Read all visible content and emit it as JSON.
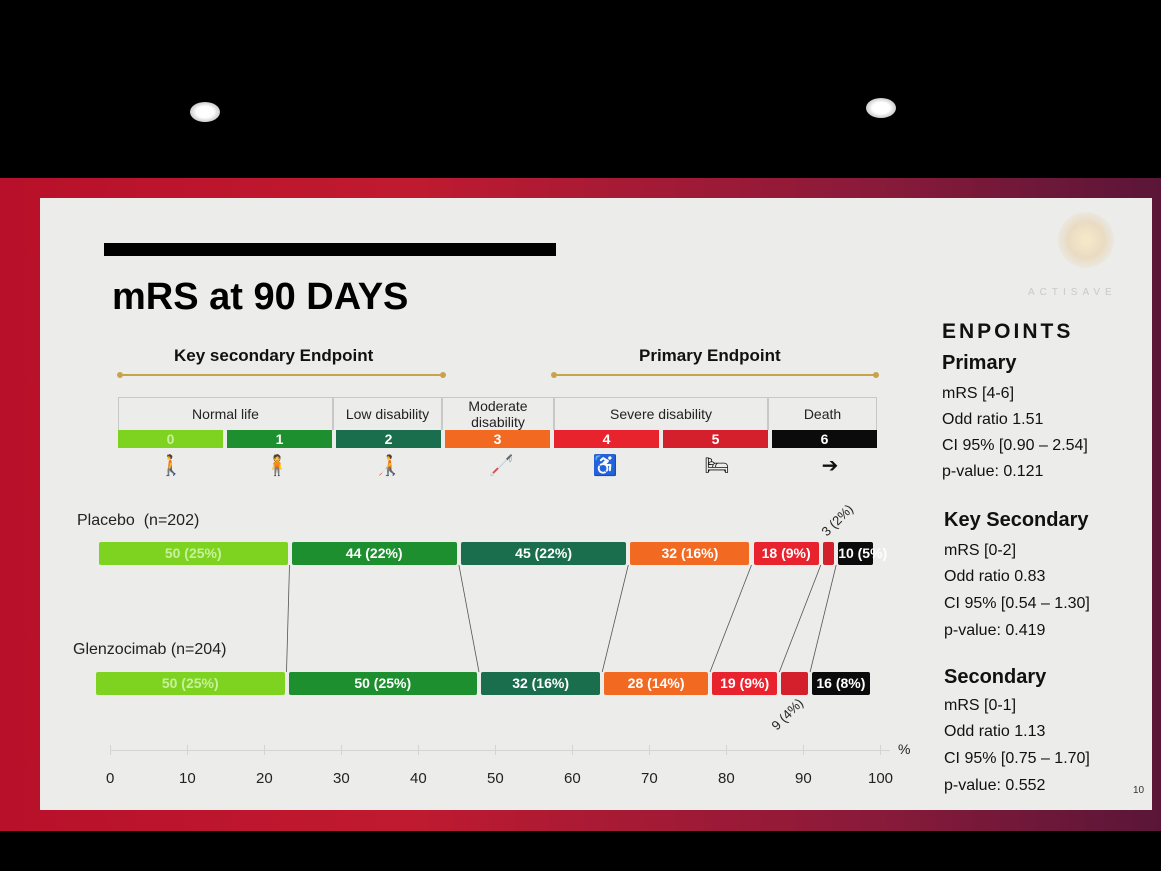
{
  "slide": {
    "title": "mRS at 90 DAYS",
    "logo_text": "ACTISAVE",
    "page_number": "10"
  },
  "endpoints_header": {
    "key_secondary": "Key secondary Endpoint",
    "primary": "Primary Endpoint"
  },
  "categories": [
    {
      "label": "Normal life"
    },
    {
      "label": "Low disability"
    },
    {
      "label": "Moderate disability"
    },
    {
      "label": "Severe disability"
    },
    {
      "label": "Death"
    }
  ],
  "scores": [
    {
      "label": "0",
      "color": "#7ed321"
    },
    {
      "label": "1",
      "color": "#1e8f2e"
    },
    {
      "label": "2",
      "color": "#1a6e4e"
    },
    {
      "label": "3",
      "color": "#f26a22"
    },
    {
      "label": "4",
      "color": "#e8232e"
    },
    {
      "label": "5",
      "color": "#d41f2d"
    },
    {
      "label": "6",
      "color": "#0b0b0b"
    }
  ],
  "icons": [
    "walking-person-icon",
    "standing-person-icon",
    "walker-person-icon",
    "cane-person-icon",
    "wheelchair-icon",
    "bed-icon",
    "lying-person-icon"
  ],
  "chart_data": {
    "type": "bar",
    "orientation": "horizontal-stacked",
    "categories": [
      "0",
      "1",
      "2",
      "3",
      "4",
      "5",
      "6"
    ],
    "series": [
      {
        "name": "Placebo  (n=202)",
        "values": [
          25,
          22,
          22,
          16,
          9,
          2,
          5
        ],
        "labels": [
          "50 (25%)",
          "44 (22%)",
          "45 (22%)",
          "32 (16%)",
          "18 (9%)",
          "3 (2%)",
          "10 (5%)"
        ]
      },
      {
        "name": "Glenzocimab (n=204)",
        "values": [
          25,
          25,
          16,
          14,
          9,
          4,
          8
        ],
        "labels": [
          "50 (25%)",
          "50 (25%)",
          "32 (16%)",
          "28 (14%)",
          "19 (9%)",
          "9 (4%)",
          "16 (8%)"
        ]
      }
    ],
    "colors": [
      "#7ed321",
      "#1e8f2e",
      "#1a6e4e",
      "#f26a22",
      "#e8232e",
      "#d41f2d",
      "#0b0b0b"
    ],
    "xlim": [
      0,
      100
    ],
    "xticks": [
      "0",
      "10",
      "20",
      "30",
      "40",
      "50",
      "60",
      "70",
      "80",
      "90",
      "100"
    ],
    "xunit": "%"
  },
  "sidebar": {
    "heading": "ENPOINTS",
    "primary": {
      "title": "Primary",
      "lines": [
        "mRS [4-6]",
        "Odd ratio 1.51",
        "CI 95% [0.90 – 2.54]",
        "p-value: 0.121"
      ]
    },
    "key_secondary": {
      "title": "Key Secondary",
      "lines": [
        "mRS [0-2]",
        "Odd ratio 0.83",
        "CI 95% [0.54 – 1.30]",
        "p-value: 0.419"
      ]
    },
    "secondary": {
      "title": "Secondary",
      "lines": [
        "mRS [0-1]",
        "Odd ratio 1.13",
        "CI 95% [0.75 – 1.70]",
        "p-value: 0.552"
      ]
    }
  }
}
